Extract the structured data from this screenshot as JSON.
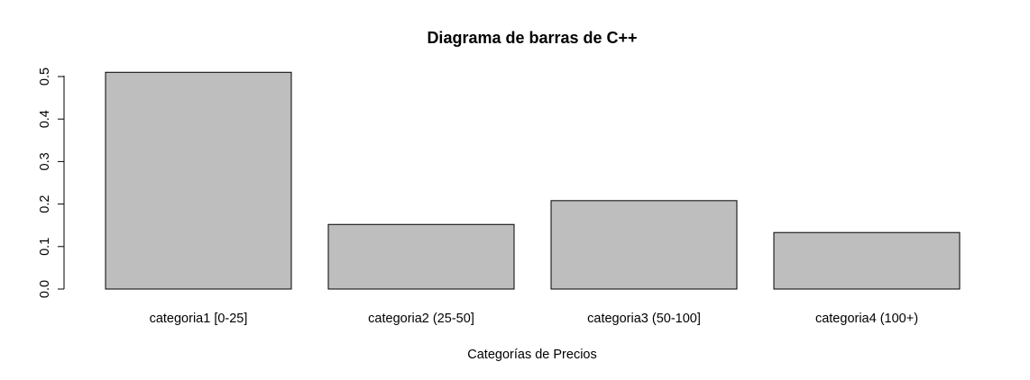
{
  "chart_data": {
    "type": "bar",
    "title": "Diagrama de barras de C++",
    "xlabel": "Categorías de Precios",
    "ylabel": "",
    "categories": [
      "categoria1 [0-25]",
      "categoria2 (25-50]",
      "categoria3 (50-100]",
      "categoria4 (100+)"
    ],
    "values": [
      0.51,
      0.152,
      0.208,
      0.133
    ],
    "ylim": [
      0,
      0.5
    ],
    "yticks": [
      "0.0",
      "0.1",
      "0.2",
      "0.3",
      "0.4",
      "0.5"
    ],
    "bar_color": "#bebebe",
    "grid": false,
    "legend": "none"
  }
}
